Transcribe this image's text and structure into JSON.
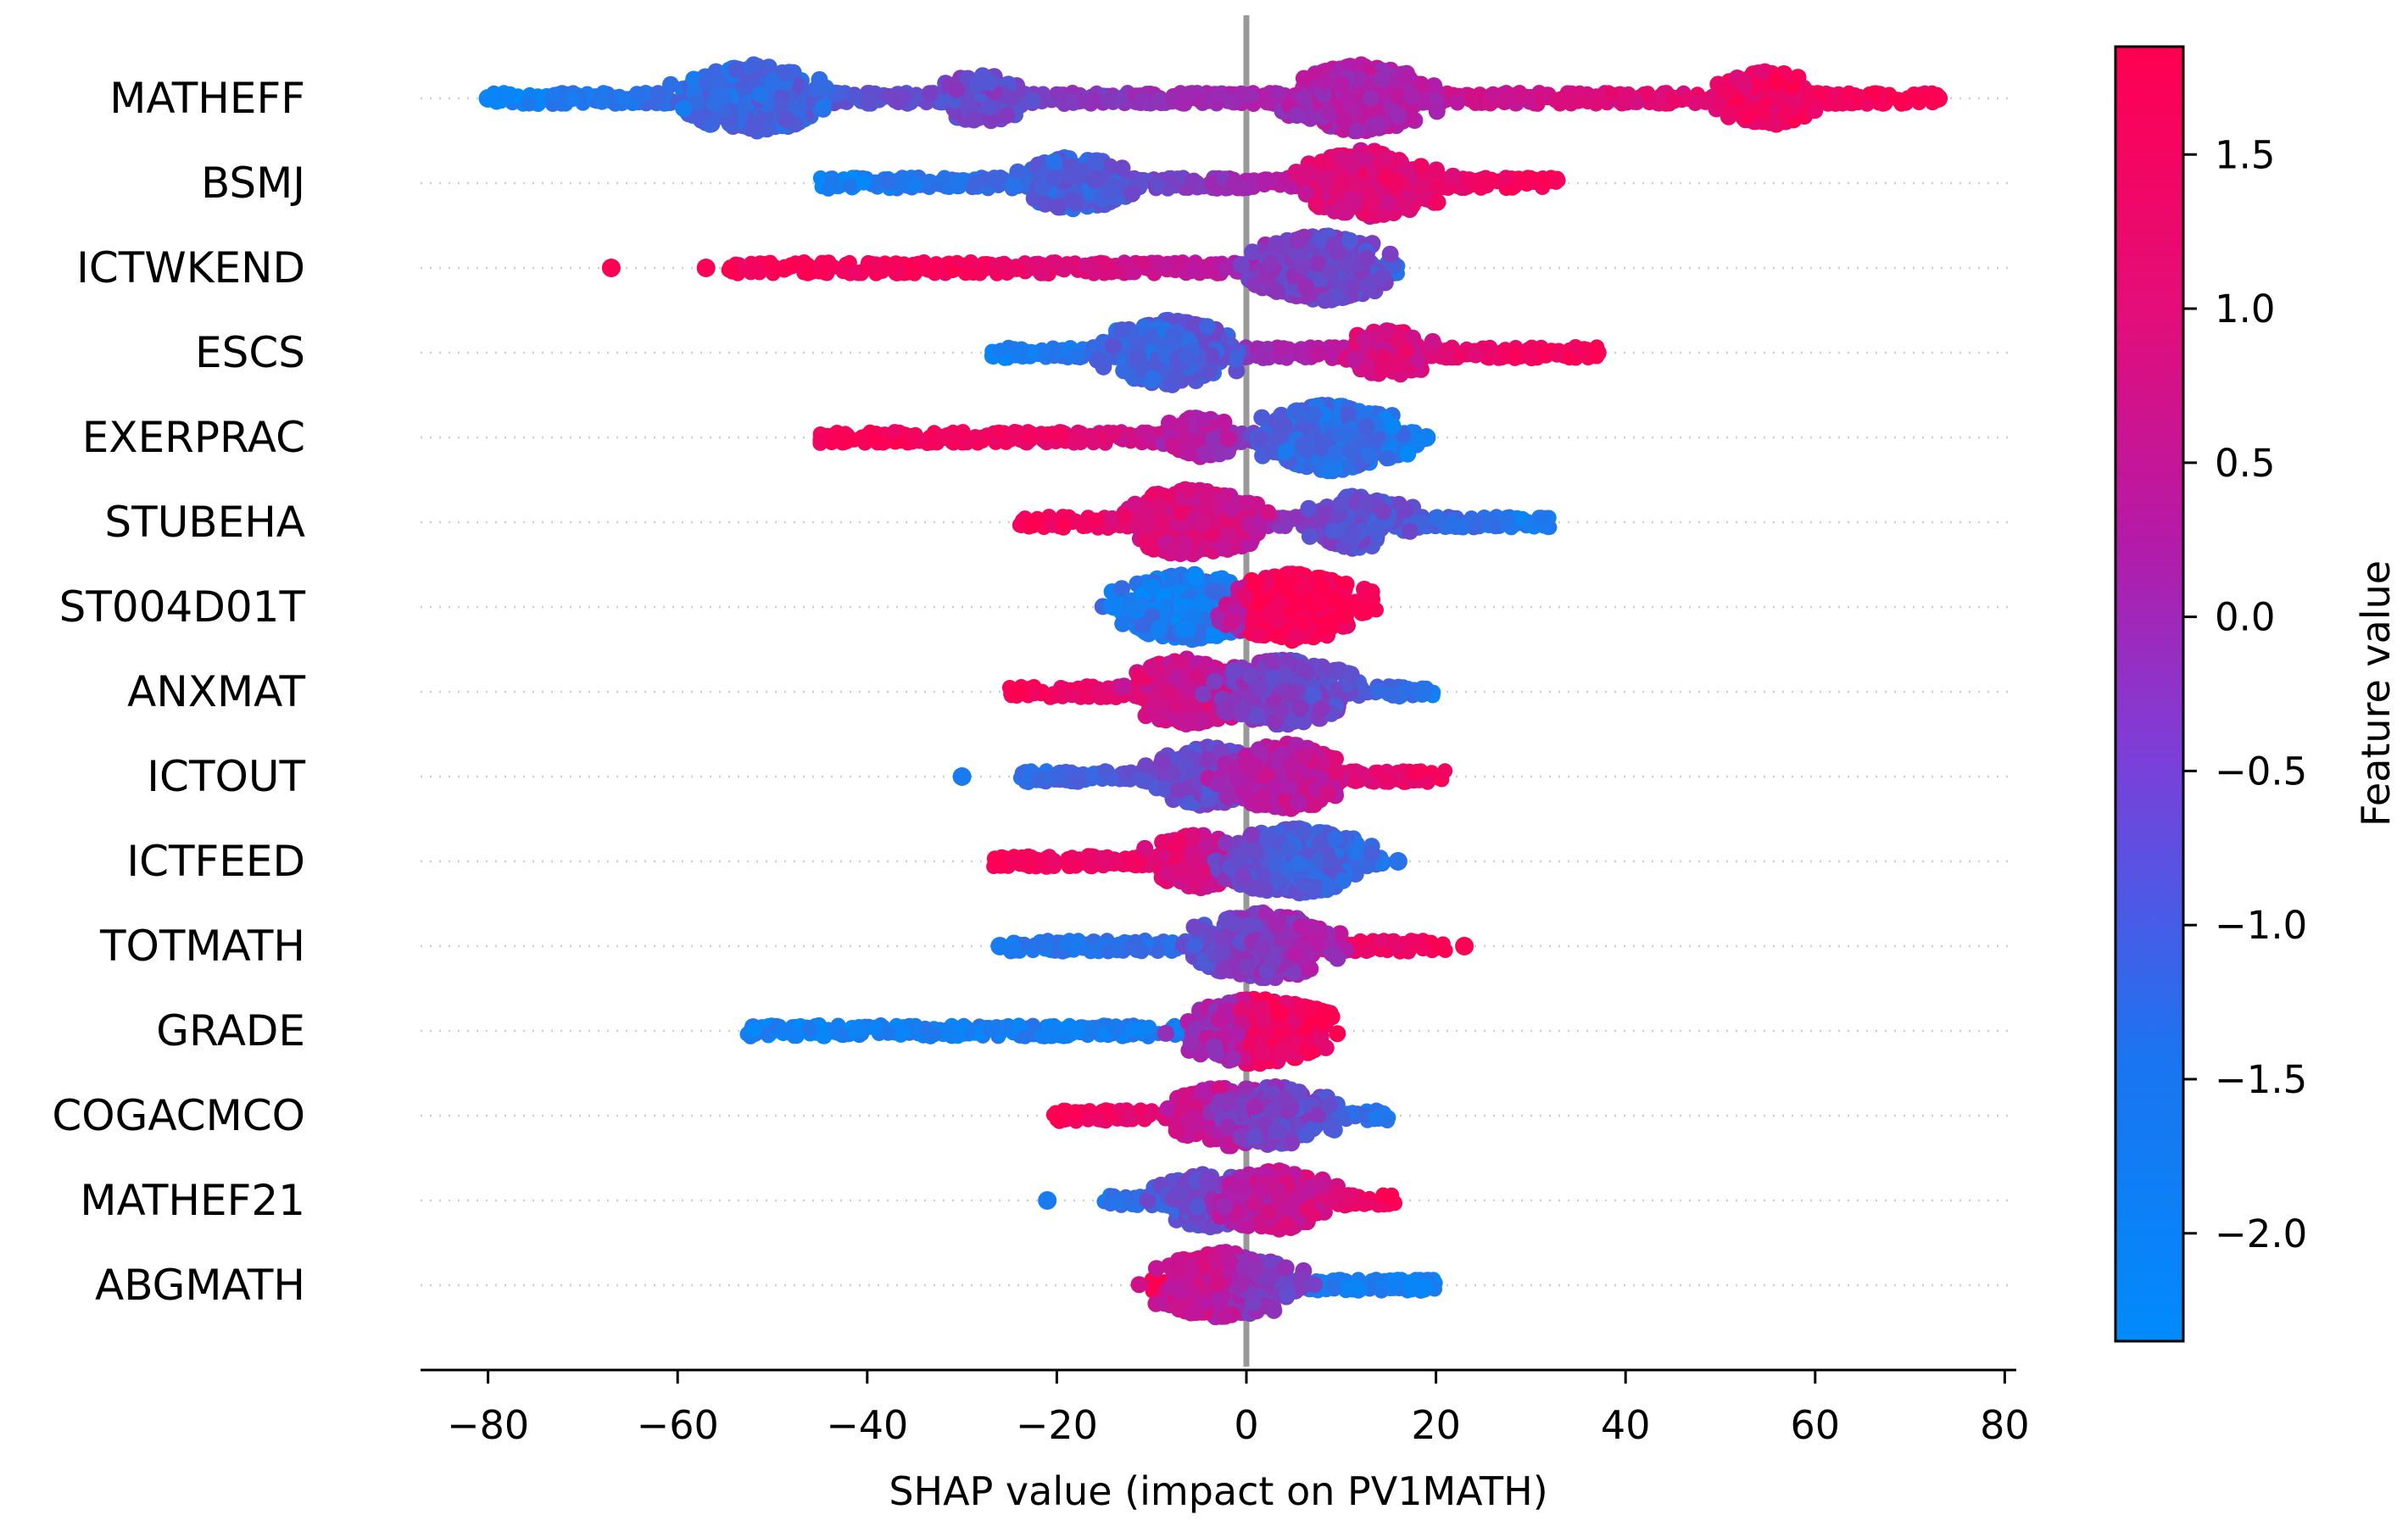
{
  "chart_data": {
    "type": "scatter",
    "subtype": "beeswarm",
    "title": "",
    "xlabel": "SHAP value (impact on PV1MATH)",
    "ylabel": "",
    "xlim": [
      -88,
      81
    ],
    "xticks": [
      -80,
      -60,
      -40,
      -20,
      0,
      20,
      40,
      60,
      80
    ],
    "xtick_labels": [
      "−80",
      "−60",
      "−40",
      "−20",
      "0",
      "20",
      "40",
      "60",
      "80"
    ],
    "colorbar": {
      "label": "Feature value",
      "range": [
        -2.35,
        1.85
      ],
      "ticks": [
        1.5,
        1.0,
        0.5,
        0.0,
        -0.5,
        -1.0,
        -1.5,
        -2.0
      ],
      "tick_labels": [
        "1.5",
        "1.0",
        "0.5",
        "0.0",
        "−0.5",
        "−1.0",
        "−1.5",
        "−2.0"
      ],
      "low_color": "#008bfb",
      "high_color": "#ff0051",
      "mid_color": "#b51aa7"
    },
    "zero_line_color": "#999999",
    "features": [
      {
        "name": "MATHEFF",
        "min": -80,
        "max": 73,
        "left_outliers": [
          -80
        ],
        "right_outliers": [
          73
        ],
        "clusters": [
          {
            "x": -52,
            "w": 10,
            "fv": -1.6
          },
          {
            "x": -28,
            "w": 6,
            "fv": -0.8
          },
          {
            "x": 12,
            "w": 10,
            "fv": 0.1
          },
          {
            "x": 55,
            "w": 7,
            "fv": 1.5
          }
        ],
        "trend": [
          [
            -80,
            -2.2
          ],
          [
            -40,
            -1.0
          ],
          [
            0,
            0.0
          ],
          [
            40,
            1.1
          ],
          [
            73,
            1.8
          ]
        ]
      },
      {
        "name": "BSMJ",
        "min": -45,
        "max": 33,
        "left_outliers": [],
        "right_outliers": [],
        "clusters": [
          {
            "x": -18,
            "w": 7,
            "fv": -1.3
          },
          {
            "x": 13,
            "w": 10,
            "fv": 1.2
          }
        ],
        "trend": [
          [
            -45,
            -2.2
          ],
          [
            -15,
            -1.2
          ],
          [
            0,
            0.0
          ],
          [
            15,
            1.2
          ],
          [
            33,
            1.8
          ]
        ]
      },
      {
        "name": "ICTWKEND",
        "min": -55,
        "max": 16,
        "left_outliers": [
          -67,
          -57
        ],
        "right_outliers": [],
        "clusters": [
          {
            "x": 8,
            "w": 10,
            "fv": -0.6
          }
        ],
        "trend": [
          [
            -67,
            1.8
          ],
          [
            -30,
            1.6
          ],
          [
            -5,
            0.5
          ],
          [
            8,
            -0.8
          ],
          [
            16,
            -1.6
          ]
        ]
      },
      {
        "name": "ESCS",
        "min": -27,
        "max": 37,
        "left_outliers": [],
        "right_outliers": [
          37
        ],
        "clusters": [
          {
            "x": -8,
            "w": 9,
            "fv": -1.4
          },
          {
            "x": 15,
            "w": 6,
            "fv": 1.0
          }
        ],
        "trend": [
          [
            -27,
            -2.2
          ],
          [
            -8,
            -1.3
          ],
          [
            3,
            0.0
          ],
          [
            20,
            1.2
          ],
          [
            37,
            1.8
          ]
        ]
      },
      {
        "name": "EXERPRAC",
        "min": -45,
        "max": 19,
        "left_outliers": [],
        "right_outliers": [
          19
        ],
        "clusters": [
          {
            "x": -5,
            "w": 5,
            "fv": 0.2
          },
          {
            "x": 9,
            "w": 10,
            "fv": -1.8
          }
        ],
        "trend": [
          [
            -45,
            1.8
          ],
          [
            -20,
            1.4
          ],
          [
            -5,
            0.3
          ],
          [
            5,
            -1.2
          ],
          [
            19,
            -2.1
          ]
        ]
      },
      {
        "name": "STUBEHA",
        "min": -24,
        "max": 32,
        "left_outliers": [],
        "right_outliers": [],
        "clusters": [
          {
            "x": -6,
            "w": 10,
            "fv": 1.0
          },
          {
            "x": 12,
            "w": 7,
            "fv": -1.0
          }
        ],
        "trend": [
          [
            -24,
            1.8
          ],
          [
            -6,
            0.9
          ],
          [
            3,
            -0.2
          ],
          [
            15,
            -1.2
          ],
          [
            32,
            -2.1
          ]
        ]
      },
      {
        "name": "ST004D01T",
        "min": -14,
        "max": 14,
        "left_outliers": [],
        "right_outliers": [],
        "clusters": [
          {
            "x": -6,
            "w": 10,
            "fv": -1.9
          },
          {
            "x": 5,
            "w": 10,
            "fv": 1.8
          }
        ],
        "trend": [
          [
            -14,
            -2.0
          ],
          [
            -1,
            -2.0
          ],
          [
            1,
            1.8
          ],
          [
            14,
            1.8
          ]
        ]
      },
      {
        "name": "ANXMAT",
        "min": -25,
        "max": 20,
        "left_outliers": [],
        "right_outliers": [],
        "clusters": [
          {
            "x": -6,
            "w": 9,
            "fv": 0.8
          },
          {
            "x": 4,
            "w": 9,
            "fv": -0.7
          }
        ],
        "trend": [
          [
            -25,
            1.8
          ],
          [
            -6,
            0.8
          ],
          [
            4,
            -0.6
          ],
          [
            12,
            -1.3
          ],
          [
            20,
            -2.0
          ]
        ]
      },
      {
        "name": "ICTOUT",
        "min": -24,
        "max": 21,
        "left_outliers": [
          -30
        ],
        "right_outliers": [],
        "clusters": [
          {
            "x": -4,
            "w": 8,
            "fv": -1.0
          },
          {
            "x": 4,
            "w": 9,
            "fv": 0.6
          }
        ],
        "trend": [
          [
            -30,
            -2.0
          ],
          [
            -15,
            -1.3
          ],
          [
            0,
            -0.3
          ],
          [
            10,
            0.9
          ],
          [
            21,
            1.7
          ]
        ]
      },
      {
        "name": "ICTFEED",
        "min": -27,
        "max": 15,
        "left_outliers": [],
        "right_outliers": [
          16
        ],
        "clusters": [
          {
            "x": -5,
            "w": 7,
            "fv": 1.0
          },
          {
            "x": 5,
            "w": 10,
            "fv": -1.4
          }
        ],
        "trend": [
          [
            -27,
            1.8
          ],
          [
            -8,
            1.3
          ],
          [
            0,
            0.0
          ],
          [
            5,
            -1.3
          ],
          [
            15,
            -1.8
          ]
        ]
      },
      {
        "name": "TOTMATH",
        "min": -25,
        "max": 21,
        "left_outliers": [
          -26
        ],
        "right_outliers": [
          23
        ],
        "clusters": [
          {
            "x": 2,
            "w": 10,
            "fv": -0.5
          }
        ],
        "trend": [
          [
            -26,
            -2.0
          ],
          [
            -5,
            -1.6
          ],
          [
            2,
            -0.3
          ],
          [
            8,
            1.2
          ],
          [
            23,
            1.8
          ]
        ]
      },
      {
        "name": "GRADE",
        "min": -53,
        "max": 6,
        "left_outliers": [],
        "right_outliers": [],
        "clusters": [
          {
            "x": 1,
            "w": 10,
            "fv": 1.5
          }
        ],
        "trend": [
          [
            -53,
            -2.1
          ],
          [
            -1,
            -2.0
          ],
          [
            0,
            1.5
          ],
          [
            6,
            1.7
          ]
        ]
      },
      {
        "name": "COGACMCO",
        "min": -21,
        "max": 15,
        "left_outliers": [],
        "right_outliers": [],
        "clusters": [
          {
            "x": -2,
            "w": 8,
            "fv": 0.5
          },
          {
            "x": 3,
            "w": 8,
            "fv": -0.7
          }
        ],
        "trend": [
          [
            -21,
            1.8
          ],
          [
            -6,
            1.0
          ],
          [
            0,
            0.0
          ],
          [
            8,
            -1.2
          ],
          [
            15,
            -2.0
          ]
        ]
      },
      {
        "name": "MATHEF21",
        "min": -15,
        "max": 16,
        "left_outliers": [
          -21
        ],
        "right_outliers": [],
        "clusters": [
          {
            "x": -4,
            "w": 7,
            "fv": -0.9
          },
          {
            "x": 3,
            "w": 8,
            "fv": 0.7
          }
        ],
        "trend": [
          [
            -21,
            -2.0
          ],
          [
            -8,
            -1.5
          ],
          [
            0,
            -0.2
          ],
          [
            6,
            1.0
          ],
          [
            16,
            1.8
          ]
        ]
      },
      {
        "name": "ABGMATH",
        "min": -10,
        "max": 20,
        "left_outliers": [],
        "right_outliers": [],
        "clusters": [
          {
            "x": -2,
            "w": 10,
            "fv": 0.2
          }
        ],
        "trend": [
          [
            -10,
            1.8
          ],
          [
            -4,
            1.5
          ],
          [
            -1,
            0.0
          ],
          [
            2,
            -1.8
          ],
          [
            20,
            -2.1
          ]
        ]
      }
    ]
  }
}
